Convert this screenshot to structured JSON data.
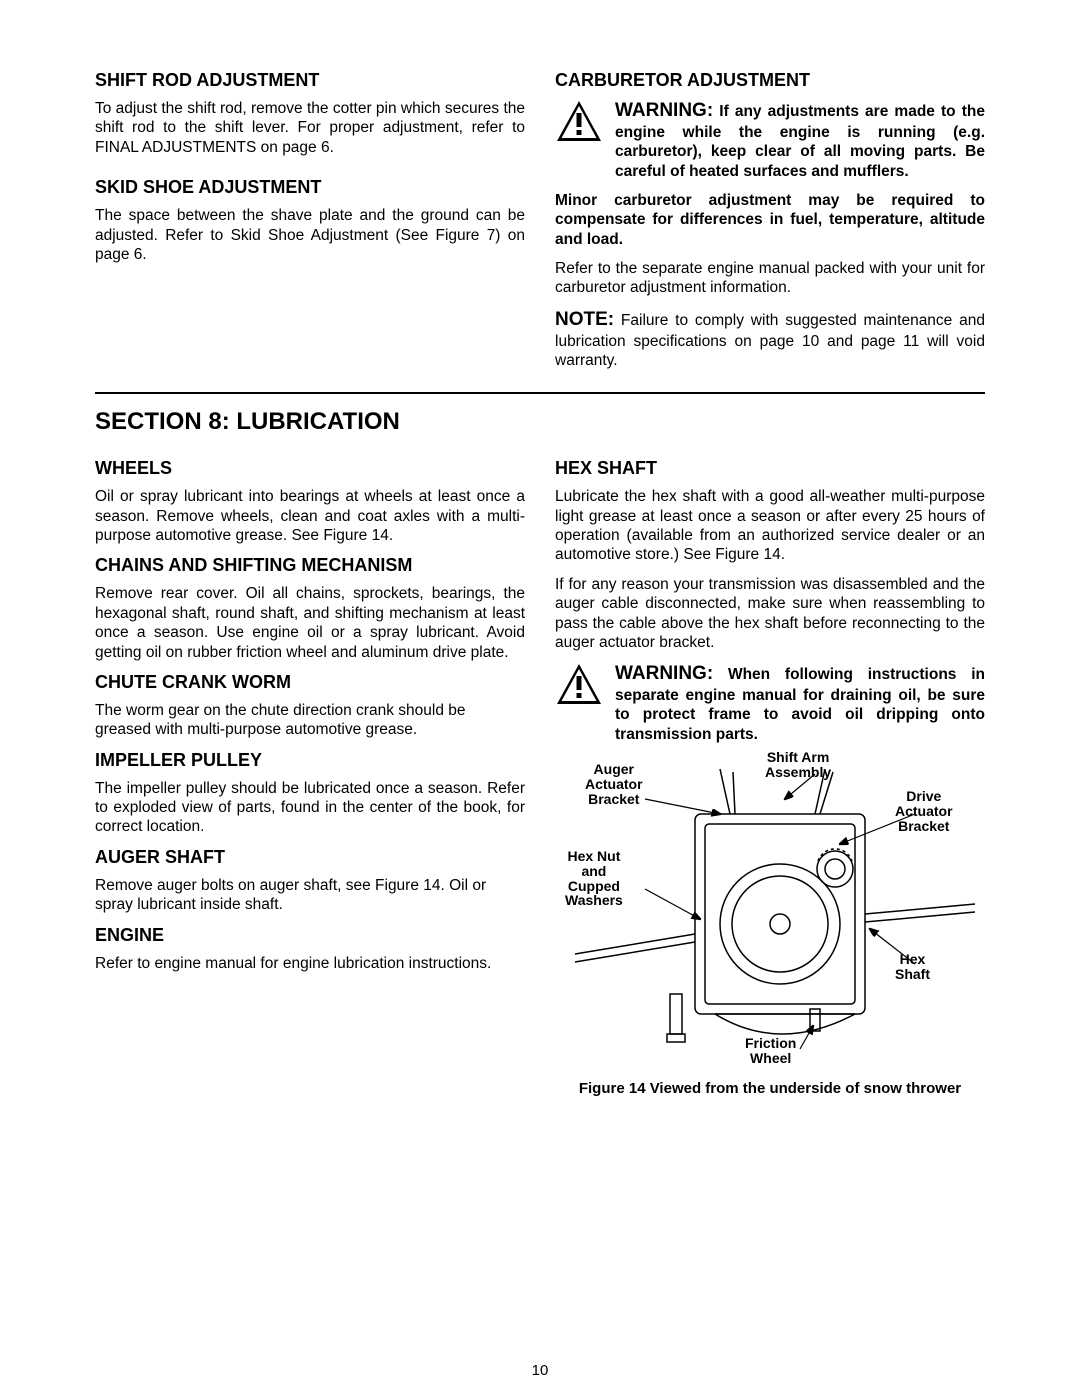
{
  "page_number": "10",
  "top": {
    "left": {
      "shift_rod": {
        "title": "SHIFT ROD ADJUSTMENT",
        "body": "To adjust the shift rod, remove the cotter pin which secures the shift rod to the shift lever. For proper adjustment, refer to FINAL ADJUSTMENTS on page 6."
      },
      "skid_shoe": {
        "title": "SKID SHOE ADJUSTMENT",
        "body": "The space between the shave plate and the ground can be adjusted. Refer to Skid Shoe Adjustment (See Figure 7) on page 6."
      }
    },
    "right": {
      "carb": {
        "title": "CARBURETOR ADJUSTMENT",
        "warn_lead": "WARNING:",
        "warn_body": " If any adjustments are made to the engine while the engine is running (e.g. carburetor), keep clear of all moving parts. Be careful of heated surfaces and mufflers.",
        "bold_p": "Minor carburetor adjustment may be required to compensate for differences in fuel, temperature, altitude and load.",
        "p2": "Refer to the separate engine manual packed with your unit for carburetor adjustment information.",
        "note_lead": "NOTE:",
        "note_body": " Failure to comply with suggested maintenance and lubrication specifications on page 10 and page 11 will void warranty."
      }
    }
  },
  "rule_present": true,
  "section": {
    "title": "SECTION 8:  LUBRICATION",
    "left": {
      "wheels": {
        "title": "WHEELS",
        "body": "Oil or spray lubricant into bearings at wheels at least once a season.  Remove wheels, clean and coat axles with a multi-purpose automotive grease. See Figure 14."
      },
      "chains": {
        "title": "CHAINS AND SHIFTING MECHANISM",
        "body": "Remove rear cover. Oil all chains, sprockets, bearings, the hexagonal shaft, round shaft, and shifting mechanism at least once a season. Use engine oil or a spray lubricant. Avoid getting oil on rubber friction wheel and aluminum drive plate."
      },
      "chute": {
        "title": "CHUTE CRANK WORM",
        "body": "The worm gear on the chute direction crank should be greased with multi-purpose automotive grease."
      },
      "impeller": {
        "title": "IMPELLER PULLEY",
        "body": "The impeller pulley should be lubricated once a season. Refer to exploded view of parts, found in the center of the book, for correct location."
      },
      "auger": {
        "title": "AUGER SHAFT",
        "body": "Remove auger bolts on auger shaft, see Figure 14. Oil or spray lubricant inside shaft."
      },
      "engine": {
        "title": "ENGINE",
        "body": "Refer to engine manual for engine lubrication instructions."
      }
    },
    "right": {
      "hex": {
        "title": "HEX SHAFT",
        "p1": "Lubricate the hex shaft with a good all-weather multi-purpose light grease at least once a season or after every 25 hours of operation (available from an authorized service dealer or an automotive store.) See Figure 14.",
        "p2": "If for any reason your transmission was disassembled and the auger cable disconnected, make sure when reassembling to pass the cable above the hex shaft before reconnecting to the auger actuator bracket.",
        "warn_lead": "WARNING:",
        "warn_body": " When following instructions in separate engine manual for draining oil, be sure to protect frame to avoid oil dripping onto transmission parts."
      },
      "figure": {
        "caption": "Figure 14  Viewed from the underside of snow thrower",
        "labels": {
          "auger_actuator": "Auger\nActuator\nBracket",
          "shift_arm": "Shift Arm\nAssembly",
          "drive_actuator": "Drive\nActuator\nBracket",
          "hex_nut": "Hex Nut\nand\nCupped\nWashers",
          "hex_shaft": "Hex\nShaft",
          "friction_wheel": "Friction\nWheel"
        }
      }
    }
  },
  "colors": {
    "text": "#000000",
    "bg": "#ffffff",
    "rule": "#000000"
  }
}
